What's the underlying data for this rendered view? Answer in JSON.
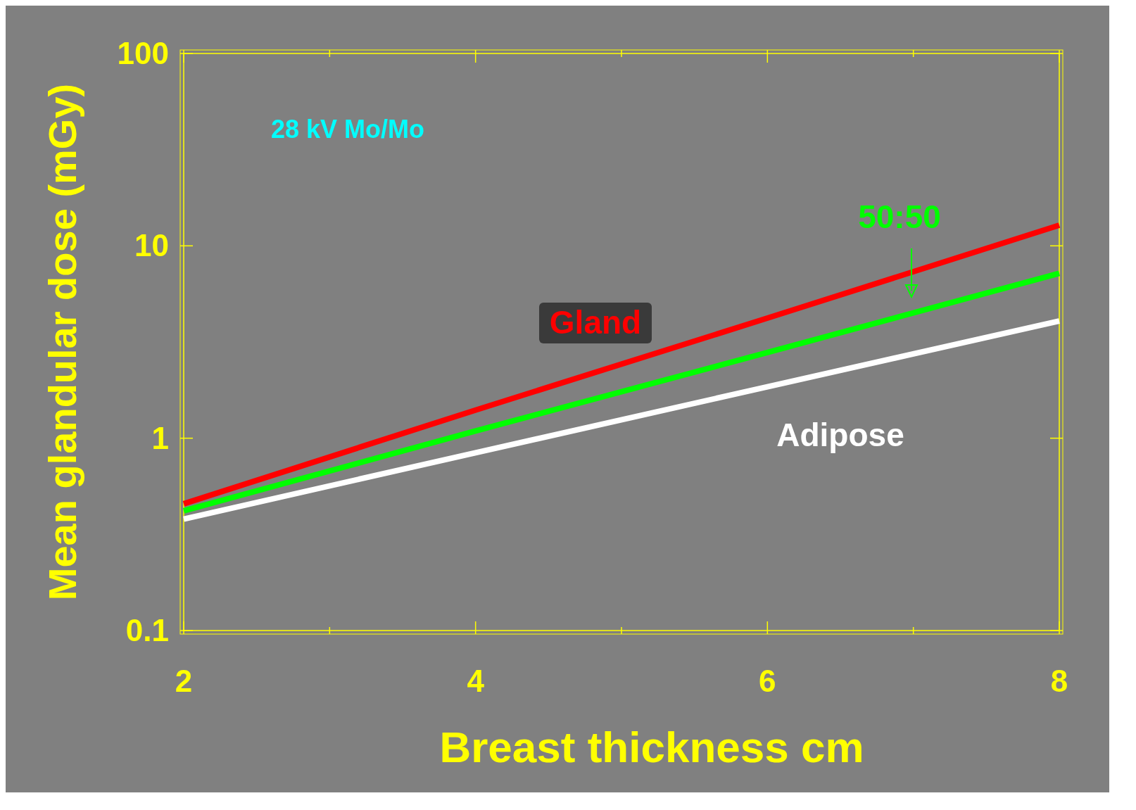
{
  "chart_data": {
    "type": "line",
    "xlabel": "Breast thickness cm",
    "ylabel": "Mean glandular dose (mGy)",
    "log": "y",
    "xlim": [
      2,
      8
    ],
    "xticks": [
      2,
      {
        "value": 3,
        "label": null
      },
      4,
      {
        "value": 5,
        "label": null
      },
      6,
      {
        "value": 7,
        "label": null
      },
      8
    ],
    "ylim": [
      0.1,
      100
    ],
    "yticks": [
      0.1,
      1,
      10,
      100
    ],
    "x": [
      2,
      4,
      6,
      8
    ],
    "series": [
      {
        "name": "Gland",
        "color": "#ff0000",
        "values": [
          0.456,
          1.4,
          4.21,
          12.8
        ]
      },
      {
        "name": "50:50",
        "color": "#00ff00",
        "values": [
          0.419,
          1.09,
          2.79,
          7.2
        ]
      },
      {
        "name": "Adipose",
        "color": "#ffffff",
        "values": [
          0.38,
          0.84,
          1.85,
          4.07
        ]
      }
    ],
    "annotations": [
      "28 kV Mo/Mo"
    ]
  }
}
